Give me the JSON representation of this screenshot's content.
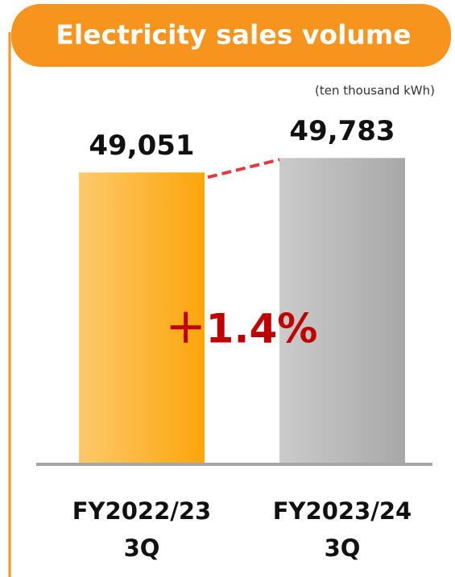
{
  "chart_data": {
    "type": "bar",
    "title": "Electricity sales volume",
    "unit_label": "(ten thousand kWh)",
    "annotation": "＋1.4%",
    "categories": [
      [
        "FY2022/23",
        "3Q"
      ],
      [
        "FY2023/24",
        "3Q"
      ]
    ],
    "values": [
      49051,
      49783
    ],
    "value_labels": [
      "49,051",
      "49,783"
    ],
    "colors": [
      "#fca50a",
      "#a8a8a8"
    ],
    "ylim": [
      34300,
      53700
    ]
  }
}
